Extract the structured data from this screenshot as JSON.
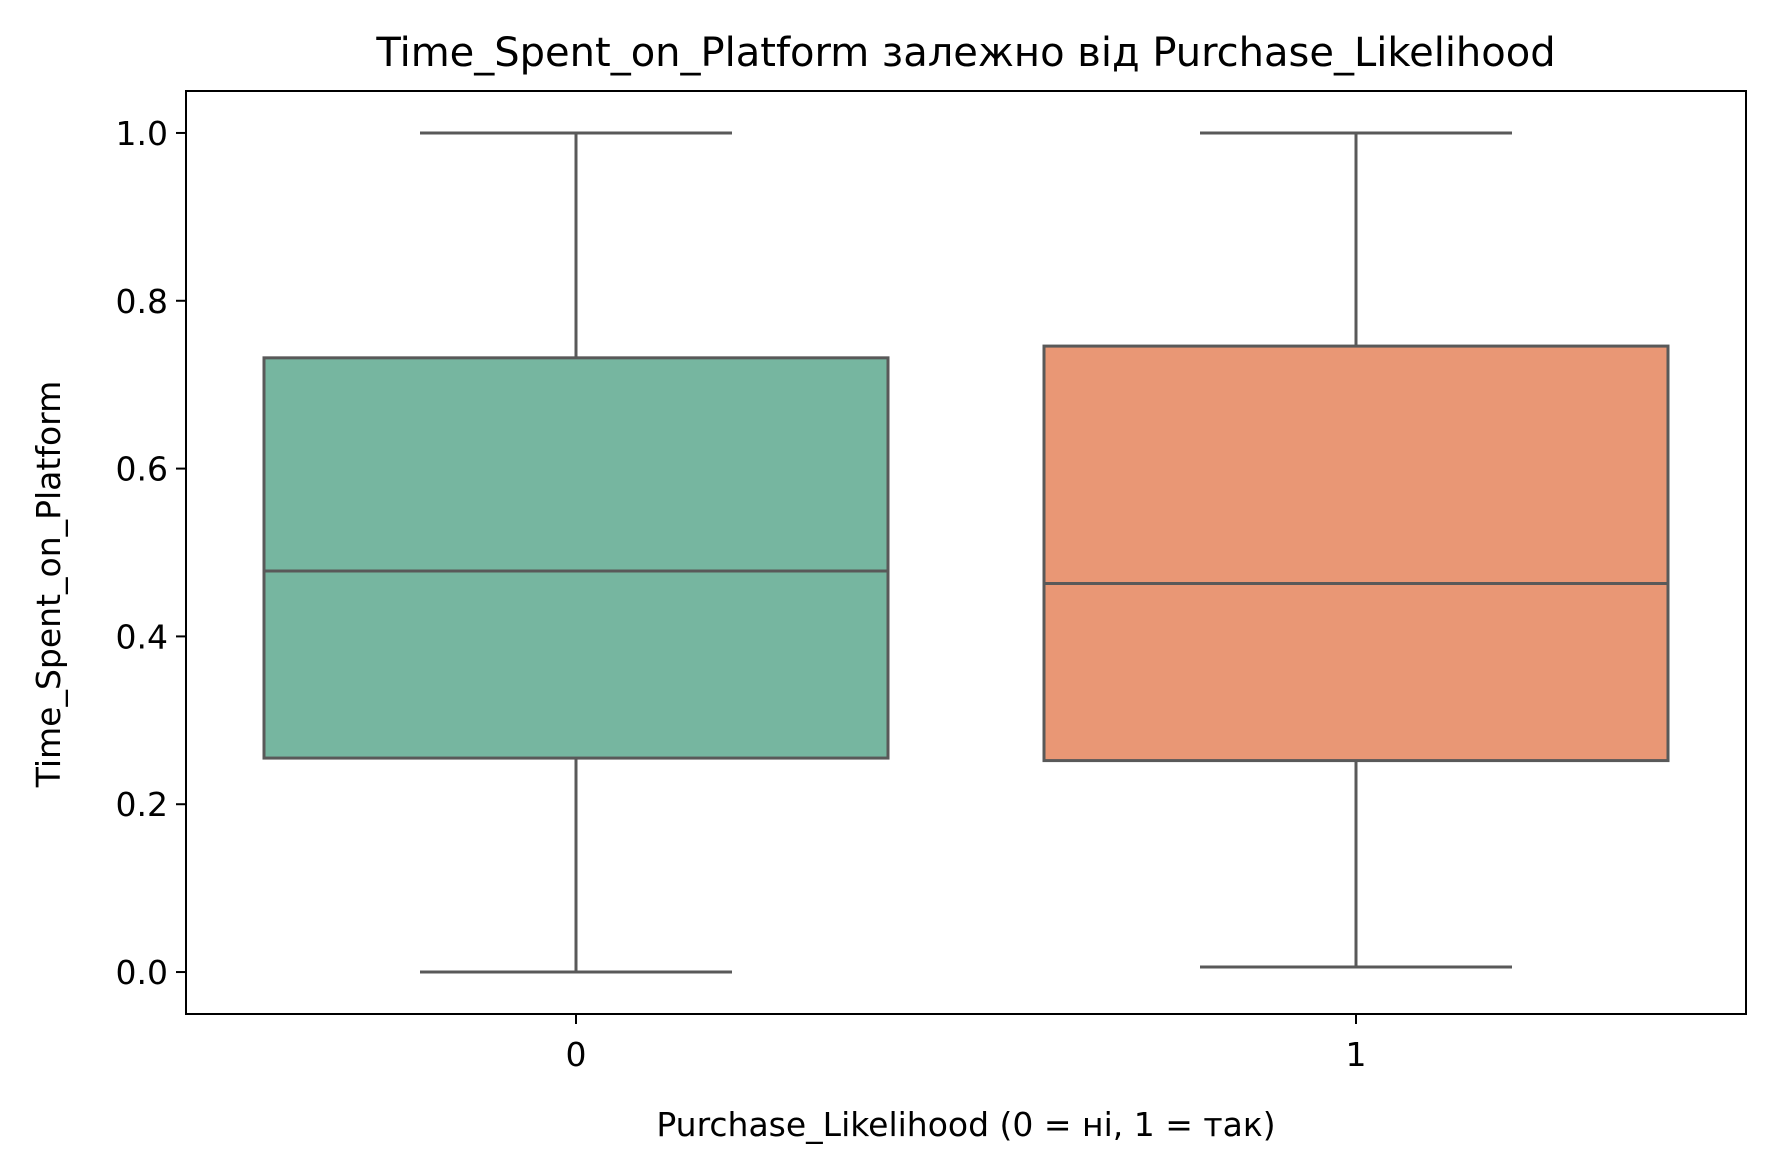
{
  "chart_data": {
    "type": "box",
    "title": "Time_Spent_on_Platform залежно від Purchase_Likelihood",
    "xlabel": "Purchase_Likelihood (0 = ні, 1 = так)",
    "ylabel": "Time_Spent_on_Platform",
    "categories": [
      "0",
      "1"
    ],
    "ylim": [
      -0.05,
      1.05
    ],
    "yticks": [
      0.0,
      0.2,
      0.4,
      0.6,
      0.8,
      1.0
    ],
    "ytick_labels": [
      "0.0",
      "0.2",
      "0.4",
      "0.6",
      "0.8",
      "1.0"
    ],
    "grid": false,
    "boxes": [
      {
        "category": "0",
        "whisker_low": 0.0,
        "q1": 0.255,
        "median": 0.478,
        "q3": 0.732,
        "whisker_high": 1.0,
        "color": "#76b6a0"
      },
      {
        "category": "1",
        "whisker_low": 0.006,
        "q1": 0.252,
        "median": 0.463,
        "q3": 0.746,
        "whisker_high": 1.0,
        "color": "#e99775"
      }
    ],
    "line_color": "#595959"
  }
}
